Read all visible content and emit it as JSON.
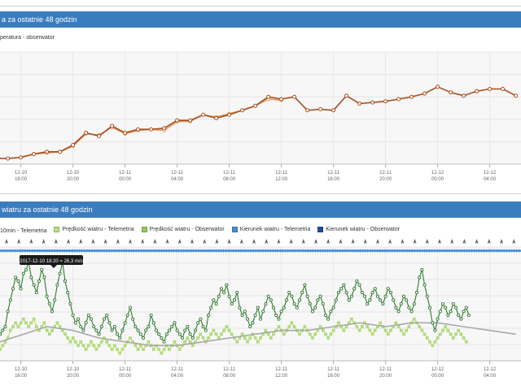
{
  "chart_data": [
    {
      "type": "line",
      "title": "a za ostatnie 48 godzin",
      "legend_text": "peratura - obserwator",
      "categories": [
        "12-10 16:00",
        "12-10 20:00",
        "12-11 00:00",
        "12-11 04:00",
        "12-11 08:00",
        "12-11 12:00",
        "12-11 16:00",
        "12-11 20:00",
        "12-12 00:00",
        "12-12 04:00"
      ],
      "tick_labels": [
        {
          "date": "12-10",
          "time": "16:00"
        },
        {
          "date": "12-10",
          "time": "20:00"
        },
        {
          "date": "12-11",
          "time": "00:00"
        },
        {
          "date": "12-11",
          "time": "04:00"
        },
        {
          "date": "12-11",
          "time": "08:00"
        },
        {
          "date": "12-11",
          "time": "12:00"
        },
        {
          "date": "12-11",
          "time": "16:00"
        },
        {
          "date": "12-11",
          "time": "20:00"
        },
        {
          "date": "12-12",
          "time": "00:00"
        },
        {
          "date": "12-12",
          "time": "04:00"
        }
      ],
      "x_range": [
        -0.4,
        9.6
      ],
      "ylim": [
        0,
        100
      ],
      "series": [
        {
          "name": "",
          "color": "#a5501f",
          "x": [
            -0.5,
            -0.25,
            0,
            0.25,
            0.5,
            0.75,
            1,
            1.25,
            1.5,
            1.75,
            2,
            2.25,
            2.5,
            2.75,
            3,
            3.25,
            3.5,
            3.75,
            4,
            4.25,
            4.5,
            4.75,
            5,
            5.25,
            5.5,
            5.75,
            6,
            6.25,
            6.5,
            6.75,
            7,
            7.25,
            7.5,
            7.75,
            8,
            8.25,
            8.5,
            8.75,
            9,
            9.25,
            9.5
          ],
          "values": [
            5,
            5,
            6,
            9,
            11,
            11,
            17,
            28,
            25,
            34,
            28,
            31,
            31,
            32,
            39,
            39,
            44,
            41,
            44,
            48,
            52,
            60,
            58,
            60,
            48,
            49,
            48,
            61,
            54,
            55,
            56,
            58,
            60,
            63,
            69,
            64,
            61,
            65,
            67,
            67,
            61
          ]
        },
        {
          "name": "",
          "color": "#e09a62",
          "x": [
            0,
            0.25,
            0.5,
            0.75,
            1,
            1.25,
            1.5,
            1.75,
            2,
            2.25,
            2.5,
            2.75,
            3,
            3.25,
            3.5,
            3.75,
            4,
            4.25,
            4.5,
            4.75,
            5
          ],
          "values": [
            6,
            9,
            10,
            11,
            16,
            27,
            26,
            33,
            27,
            30,
            31,
            30,
            38,
            38,
            44,
            42,
            45,
            48,
            52,
            58,
            57
          ]
        }
      ]
    },
    {
      "type": "line",
      "title": "wiatru za ostatnie 48 godzin",
      "legend": [
        "10min - Telemetria",
        "Prędkość wiatru - Telemetria",
        "Prędkość wiatru - Obserwator",
        "Kierunek wiatru - Telemetria",
        "Kierunek wiatru - Obserwator"
      ],
      "legend_colors": [
        "#2f7a2f",
        "#b7e37a",
        "#8fd05a",
        "#3f8fdc",
        "#1f4fa0"
      ],
      "tooltip": "2017-12-10 18:20 = 26,3 m/s",
      "tick_labels": [
        {
          "date": "12-10",
          "time": "16:00"
        },
        {
          "date": "12-10",
          "time": "20:00"
        },
        {
          "date": "12-11",
          "time": "00:00"
        },
        {
          "date": "12-11",
          "time": "04:00"
        },
        {
          "date": "12-11",
          "time": "08:00"
        },
        {
          "date": "12-11",
          "time": "12:00"
        },
        {
          "date": "12-11",
          "time": "16:00"
        },
        {
          "date": "12-11",
          "time": "20:00"
        },
        {
          "date": "12-12",
          "time": "00:00"
        },
        {
          "date": "12-12",
          "time": "04:00"
        }
      ],
      "x_range": [
        -0.4,
        9.6
      ],
      "ylim": [
        0,
        30
      ],
      "series": [
        {
          "name": "10min - Telemetria",
          "color": "#2f7a2f",
          "x_start": -0.4,
          "x_step": 0.05,
          "values": [
            7,
            8,
            9,
            13,
            16,
            19,
            22,
            21,
            19,
            23,
            24,
            26,
            22,
            20,
            18,
            21,
            24,
            22,
            17,
            15,
            13,
            16,
            20,
            23,
            26,
            21,
            18,
            15,
            12,
            10,
            11,
            9,
            8,
            10,
            12,
            11,
            9,
            8,
            7,
            9,
            11,
            12,
            10,
            8,
            9,
            7,
            6,
            8,
            10,
            12,
            14,
            11,
            9,
            8,
            7,
            6,
            8,
            9,
            12,
            10,
            8,
            7,
            6,
            5,
            7,
            8,
            9,
            10,
            8,
            7,
            6,
            8,
            9,
            7,
            6,
            8,
            10,
            11,
            9,
            8,
            12,
            14,
            16,
            15,
            17,
            19,
            18,
            20,
            17,
            15,
            16,
            18,
            14,
            12,
            13,
            11,
            9,
            10,
            12,
            14,
            11,
            13,
            15,
            17,
            16,
            14,
            12,
            11,
            13,
            14,
            16,
            18,
            17,
            15,
            14,
            16,
            18,
            20,
            17,
            15,
            13,
            14,
            16,
            17,
            15,
            12,
            11,
            13,
            14,
            16,
            18,
            19,
            20,
            18,
            16,
            17,
            19,
            21,
            20,
            18,
            17,
            15,
            16,
            18,
            19,
            17,
            16,
            15,
            17,
            19,
            18,
            16,
            14,
            13,
            15,
            17,
            16,
            14,
            13,
            15,
            18,
            22,
            24,
            20,
            17,
            14,
            10,
            8,
            11,
            13,
            15,
            14,
            12,
            13,
            15,
            14,
            12,
            11,
            13,
            14,
            12
          ]
        },
        {
          "name": "Prędkość wiatru - Telemetria",
          "color": "#b7e37a",
          "x_start": -0.4,
          "x_step": 0.05,
          "values": [
            3,
            4,
            5,
            6,
            8,
            9,
            10,
            9,
            10,
            11,
            10,
            9,
            10,
            11,
            9,
            8,
            9,
            10,
            8,
            7,
            8,
            9,
            10,
            9,
            8,
            7,
            6,
            5,
            6,
            5,
            4,
            5,
            4,
            3,
            4,
            5,
            4,
            3,
            4,
            5,
            6,
            5,
            4,
            3,
            4,
            3,
            2,
            3,
            4,
            5,
            6,
            5,
            4,
            3,
            4,
            3,
            4,
            5,
            4,
            3,
            4,
            3,
            2,
            3,
            4,
            3,
            4,
            5,
            4,
            3,
            4,
            5,
            6,
            5,
            4,
            5,
            6,
            7,
            6,
            5,
            6,
            7,
            8,
            7,
            6,
            7,
            8,
            9,
            8,
            7,
            6,
            5,
            6,
            7,
            6,
            5,
            6,
            7,
            6,
            5,
            6,
            7,
            8,
            7,
            6,
            7,
            8,
            9,
            8,
            7,
            8,
            9,
            10,
            9,
            8,
            7,
            8,
            9,
            8,
            7,
            6,
            7,
            8,
            9,
            8,
            7,
            6,
            7,
            8,
            9,
            10,
            9,
            8,
            9,
            10,
            11,
            10,
            9,
            8,
            9,
            10,
            9,
            8,
            7,
            8,
            9,
            10,
            9,
            8,
            7,
            8,
            9,
            10,
            9,
            8,
            7,
            8,
            9,
            10,
            11,
            10,
            9,
            8,
            7,
            6,
            5,
            4,
            5,
            6,
            7,
            8,
            9,
            8,
            7,
            6,
            7,
            8,
            7,
            6,
            5
          ]
        },
        {
          "name": "Prędkość wiatru - Obserwator",
          "color": "#9ccb6a",
          "x": [
            -0.4,
            0.5,
            1.0,
            1.5,
            2.0,
            2.5,
            3.0,
            3.5,
            4.0,
            4.5,
            5.0,
            5.5,
            6.0,
            6.5,
            7.0,
            7.5,
            8.0,
            8.5,
            9.0,
            9.5
          ],
          "values": [
            5,
            9,
            8,
            6,
            5,
            4,
            4,
            5,
            6,
            7,
            8,
            8,
            9,
            10,
            9,
            10,
            10,
            9,
            8,
            7
          ]
        },
        {
          "name": "Kierunek wiatru - Telemetria",
          "color": "#3f8fdc",
          "level": 29
        },
        {
          "name": "Kierunek wiatru - Obserwator",
          "color": "#1f4fa0",
          "level": 31.5
        }
      ]
    }
  ]
}
